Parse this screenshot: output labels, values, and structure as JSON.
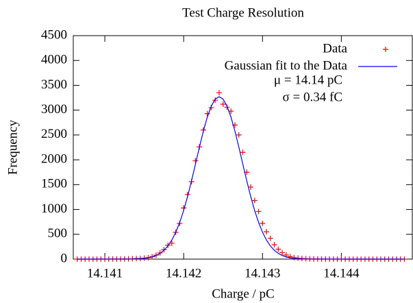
{
  "chart_data": {
    "type": "scatter",
    "title": "Test Charge Resolution",
    "xlabel": "Charge / pC",
    "ylabel": "Frequency",
    "annotations": [
      "μ = 14.14 pC",
      "σ = 0.34 fC"
    ],
    "x": [
      14.14065,
      14.1407,
      14.14075,
      14.1408,
      14.14085,
      14.1409,
      14.14095,
      14.141,
      14.14105,
      14.1411,
      14.14115,
      14.1412,
      14.14125,
      14.1413,
      14.14135,
      14.1414,
      14.14145,
      14.1415,
      14.14155,
      14.1416,
      14.14165,
      14.1417,
      14.14175,
      14.1418,
      14.14185,
      14.1419,
      14.14195,
      14.142,
      14.14205,
      14.1421,
      14.14215,
      14.1422,
      14.14225,
      14.1423,
      14.14235,
      14.1424,
      14.14245,
      14.1425,
      14.14255,
      14.1426,
      14.14265,
      14.1427,
      14.14275,
      14.1428,
      14.14285,
      14.1429,
      14.14295,
      14.143,
      14.14305,
      14.1431,
      14.14315,
      14.1432,
      14.14325,
      14.1433,
      14.14335,
      14.1434,
      14.14345,
      14.1435,
      14.14355,
      14.1436,
      14.14365,
      14.1437,
      14.14375,
      14.1438,
      14.14385,
      14.1439,
      14.14395,
      14.144,
      14.14405,
      14.1441,
      14.14415,
      14.1442,
      14.14425,
      14.1443,
      14.14435,
      14.1444,
      14.14445,
      14.1445,
      14.14455,
      14.1446,
      14.14465,
      14.1447,
      14.14475,
      14.1448
    ],
    "series": [
      {
        "name": "Data",
        "color": "#ff0000",
        "mode": "markers",
        "values": [
          0,
          0,
          0,
          1,
          0,
          0,
          2,
          0,
          1,
          3,
          2,
          4,
          5,
          6,
          8,
          10,
          14,
          20,
          30,
          48,
          80,
          125,
          190,
          280,
          320,
          540,
          720,
          1030,
          1300,
          1560,
          1980,
          2260,
          2600,
          2930,
          3050,
          3200,
          3350,
          3120,
          3060,
          2980,
          2700,
          2500,
          2150,
          1750,
          1450,
          1180,
          960,
          720,
          550,
          420,
          290,
          200,
          130,
          85,
          50,
          30,
          20,
          12,
          8,
          5,
          4,
          3,
          2,
          2,
          1,
          1,
          0,
          1,
          0,
          0,
          0,
          0,
          0,
          0,
          0,
          0,
          0,
          0,
          0,
          0,
          0,
          0,
          0,
          0
        ]
      },
      {
        "name": "Gaussian fit to the Data",
        "color": "#0000ff",
        "mode": "lines",
        "values": [
          0,
          0,
          0,
          0,
          0,
          0,
          0,
          0,
          0,
          0,
          0,
          0,
          0,
          1,
          2,
          5,
          9,
          15,
          26,
          45,
          73,
          115,
          178,
          265,
          385,
          542,
          740,
          981,
          1264,
          1579,
          1915,
          2255,
          2578,
          2861,
          3081,
          3222,
          3270,
          3222,
          3081,
          2861,
          2578,
          2255,
          1915,
          1579,
          1264,
          981,
          740,
          542,
          385,
          265,
          178,
          115,
          73,
          45,
          26,
          15,
          9,
          5,
          2,
          1,
          0,
          0,
          0,
          0,
          0,
          0,
          0,
          0,
          0,
          0,
          0,
          0,
          0,
          0,
          0,
          0,
          0,
          0,
          0,
          0,
          0,
          0,
          0,
          0
        ]
      }
    ],
    "xlim": [
      14.1406,
      14.1449
    ],
    "xticks": [
      14.141,
      14.142,
      14.143,
      14.144
    ],
    "ylim": [
      0,
      4500
    ],
    "yticks": [
      0,
      500,
      1000,
      1500,
      2000,
      2500,
      3000,
      3500,
      4000,
      4500
    ],
    "legend": "upper right"
  }
}
